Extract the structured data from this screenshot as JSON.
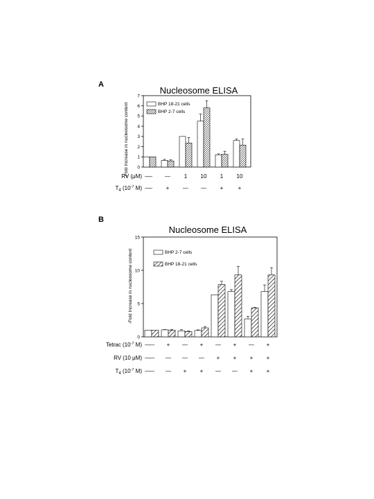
{
  "chart_data": [
    {
      "panel": "A",
      "type": "bar",
      "title": "Nucleosome ELISA",
      "ylabel": "-Fold Increase in nucleosome content",
      "ylim": [
        0,
        7
      ],
      "yticks": [
        "0",
        "1",
        "2",
        "3",
        "4",
        "5",
        "6",
        "7"
      ],
      "series": [
        {
          "name": "BHP 18-21 cells",
          "pattern": "open",
          "values": [
            1.0,
            0.65,
            3.0,
            4.5,
            1.2,
            2.6
          ],
          "errors": [
            0.0,
            0.1,
            0.0,
            0.7,
            0.1,
            0.15
          ]
        },
        {
          "name": "BHP 2-7 cells",
          "pattern": "hatched",
          "values": [
            1.0,
            0.6,
            2.35,
            5.8,
            1.25,
            2.15
          ],
          "errors": [
            0.0,
            0.1,
            0.55,
            0.7,
            0.3,
            0.6
          ]
        }
      ],
      "conditions": [
        {
          "label": "RV (μM)",
          "values": [
            "—",
            "—",
            "1",
            "10",
            "1",
            "10"
          ]
        },
        {
          "label": "T4 (10-7 M)",
          "values": [
            "—",
            "+",
            "—",
            "—",
            "+",
            "+"
          ]
        }
      ]
    },
    {
      "panel": "B",
      "type": "bar",
      "title": "Nucleosome ELISA",
      "ylabel": "-Fold Increase in nucleosome content",
      "ylim": [
        0,
        15
      ],
      "yticks": [
        "0",
        "5",
        "10",
        "15"
      ],
      "series": [
        {
          "name": "BHP 2-7 cells",
          "pattern": "open",
          "values": [
            1.0,
            1.05,
            0.9,
            0.95,
            6.3,
            6.8,
            2.7,
            6.8
          ],
          "errors": [
            0.0,
            0.05,
            0.2,
            0.1,
            0.0,
            0.3,
            0.4,
            1.0
          ]
        },
        {
          "name": "BHP 18-21 cells",
          "pattern": "hatched",
          "values": [
            1.0,
            1.0,
            0.8,
            1.35,
            7.85,
            9.3,
            4.35,
            9.3
          ],
          "errors": [
            0.0,
            0.1,
            0.1,
            0.2,
            0.5,
            1.3,
            0.1,
            1.1
          ]
        }
      ],
      "conditions": [
        {
          "label": "Tetrac (10-7 M)",
          "values": [
            "—",
            "+",
            "—",
            "+",
            "—",
            "+",
            "—",
            "+"
          ]
        },
        {
          "label": "RV (10 μM)",
          "values": [
            "—",
            "—",
            "—",
            "—",
            "+",
            "+",
            "+",
            "+"
          ]
        },
        {
          "label": "T4 (10-7 M)",
          "values": [
            "—",
            "—",
            "+",
            "+",
            "—",
            "—",
            "+",
            "+"
          ]
        }
      ]
    }
  ]
}
